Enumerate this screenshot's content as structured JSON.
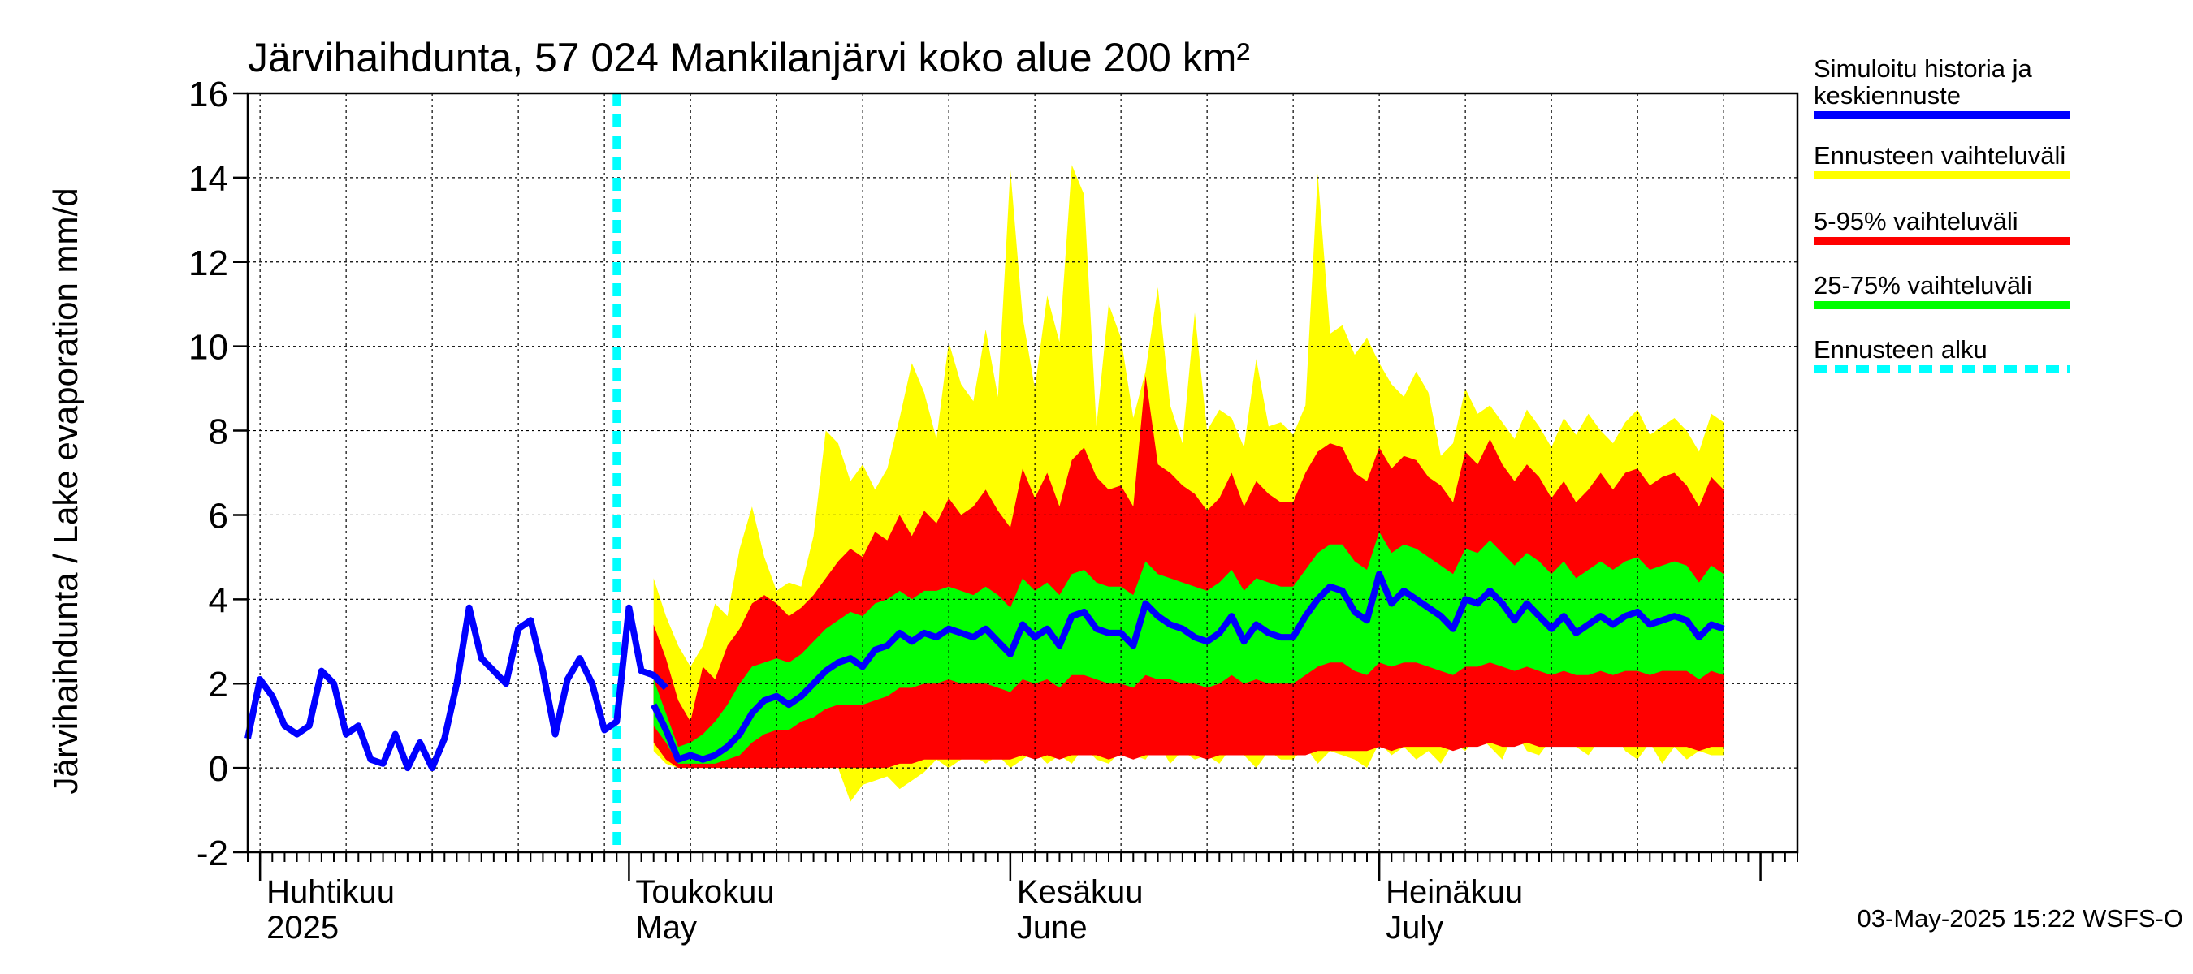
{
  "chart_data": {
    "type": "area",
    "title": "Järvihaihdunta, 57 024 Mankilanjärvi koko alue 200 km²",
    "ylabel": "Järvihaihdunta / Lake evaporation   mm/d",
    "ylim": [
      -2,
      16
    ],
    "yticks": [
      -2,
      0,
      2,
      4,
      6,
      8,
      10,
      12,
      14,
      16
    ],
    "xlim": [
      "2025-03-31",
      "2025-08-04"
    ],
    "grid": true,
    "legend_position": "right",
    "months": [
      {
        "date": "2025-04-01",
        "label_fi": "Huhtikuu",
        "label_en": "2025"
      },
      {
        "date": "2025-05-01",
        "label_fi": "Toukokuu",
        "label_en": "May"
      },
      {
        "date": "2025-06-01",
        "label_fi": "Kesäkuu",
        "label_en": "June"
      },
      {
        "date": "2025-07-01",
        "label_fi": "Heinäkuu",
        "label_en": "July"
      }
    ],
    "forecast_start": "2025-04-30",
    "history": {
      "start": "2025-03-31",
      "values": [
        0.7,
        2.1,
        1.7,
        1.0,
        0.8,
        1.0,
        2.3,
        2.0,
        0.8,
        1.0,
        0.2,
        0.1,
        0.8,
        0.0,
        0.6,
        0.0,
        0.7,
        2.0,
        3.8,
        2.6,
        2.3,
        2.0,
        3.3,
        3.5,
        2.3,
        0.8,
        2.1,
        2.6,
        2.0,
        0.9,
        1.1,
        3.8,
        2.3,
        2.2,
        1.9
      ]
    },
    "forecast": {
      "start": "2025-05-03",
      "median": [
        1.5,
        0.9,
        0.2,
        0.3,
        0.2,
        0.3,
        0.5,
        0.8,
        1.3,
        1.6,
        1.7,
        1.5,
        1.7,
        2.0,
        2.3,
        2.5,
        2.6,
        2.4,
        2.8,
        2.9,
        3.2,
        3.0,
        3.2,
        3.1,
        3.3,
        3.2,
        3.1,
        3.3,
        3.0,
        2.7,
        3.4,
        3.1,
        3.3,
        2.9,
        3.6,
        3.7,
        3.3,
        3.2,
        3.2,
        2.9,
        3.9,
        3.6,
        3.4,
        3.3,
        3.1,
        3.0,
        3.2,
        3.6,
        3.0,
        3.4,
        3.2,
        3.1,
        3.1,
        3.6,
        4.0,
        4.3,
        4.2,
        3.7,
        3.5,
        4.6,
        3.9,
        4.2,
        4.0,
        3.8,
        3.6,
        3.3,
        4.0,
        3.9,
        4.2,
        3.9,
        3.5,
        3.9,
        3.6,
        3.3,
        3.6,
        3.2,
        3.4,
        3.6,
        3.4,
        3.6,
        3.7,
        3.4,
        3.5,
        3.6,
        3.5,
        3.1,
        3.4,
        3.3
      ],
      "p25": [
        1.0,
        0.6,
        0.1,
        0.1,
        0.1,
        0.1,
        0.2,
        0.3,
        0.6,
        0.8,
        0.9,
        0.9,
        1.1,
        1.2,
        1.4,
        1.5,
        1.5,
        1.5,
        1.6,
        1.7,
        1.9,
        1.9,
        2.0,
        2.0,
        2.1,
        2.0,
        2.0,
        2.0,
        1.9,
        1.8,
        2.1,
        2.0,
        2.1,
        1.9,
        2.2,
        2.2,
        2.1,
        2.0,
        2.0,
        1.9,
        2.2,
        2.1,
        2.1,
        2.0,
        2.0,
        1.9,
        2.0,
        2.2,
        2.0,
        2.1,
        2.0,
        2.0,
        2.0,
        2.2,
        2.4,
        2.5,
        2.5,
        2.3,
        2.2,
        2.5,
        2.4,
        2.5,
        2.5,
        2.4,
        2.3,
        2.2,
        2.4,
        2.4,
        2.5,
        2.4,
        2.3,
        2.4,
        2.3,
        2.2,
        2.3,
        2.2,
        2.2,
        2.3,
        2.2,
        2.3,
        2.3,
        2.2,
        2.3,
        2.3,
        2.3,
        2.1,
        2.3,
        2.2
      ],
      "p75": [
        2.1,
        1.3,
        0.5,
        0.6,
        0.8,
        1.1,
        1.5,
        2.0,
        2.4,
        2.5,
        2.6,
        2.5,
        2.7,
        3.0,
        3.3,
        3.5,
        3.7,
        3.6,
        3.9,
        4.0,
        4.2,
        4.0,
        4.2,
        4.2,
        4.3,
        4.2,
        4.1,
        4.3,
        4.1,
        3.8,
        4.5,
        4.2,
        4.4,
        4.1,
        4.6,
        4.7,
        4.4,
        4.3,
        4.3,
        4.1,
        4.9,
        4.6,
        4.5,
        4.4,
        4.3,
        4.2,
        4.4,
        4.7,
        4.2,
        4.5,
        4.4,
        4.3,
        4.3,
        4.7,
        5.1,
        5.3,
        5.3,
        4.9,
        4.7,
        5.6,
        5.1,
        5.3,
        5.2,
        5.0,
        4.8,
        4.6,
        5.2,
        5.1,
        5.4,
        5.1,
        4.8,
        5.1,
        4.9,
        4.6,
        4.9,
        4.5,
        4.7,
        4.9,
        4.7,
        4.9,
        5.0,
        4.7,
        4.8,
        4.9,
        4.8,
        4.4,
        4.8,
        4.6
      ],
      "p5": [
        0.6,
        0.2,
        0.0,
        0.0,
        0.0,
        0.0,
        0.0,
        0.0,
        0.0,
        0.0,
        0.0,
        0.0,
        0.0,
        0.0,
        0.0,
        0.0,
        0.0,
        0.0,
        0.0,
        0.0,
        0.1,
        0.1,
        0.2,
        0.2,
        0.2,
        0.2,
        0.2,
        0.2,
        0.2,
        0.2,
        0.3,
        0.2,
        0.3,
        0.2,
        0.3,
        0.3,
        0.3,
        0.2,
        0.3,
        0.2,
        0.3,
        0.3,
        0.3,
        0.3,
        0.3,
        0.2,
        0.3,
        0.3,
        0.3,
        0.3,
        0.3,
        0.3,
        0.3,
        0.3,
        0.4,
        0.4,
        0.4,
        0.4,
        0.4,
        0.5,
        0.4,
        0.5,
        0.5,
        0.5,
        0.5,
        0.4,
        0.5,
        0.5,
        0.6,
        0.5,
        0.5,
        0.6,
        0.5,
        0.5,
        0.5,
        0.5,
        0.5,
        0.5,
        0.5,
        0.5,
        0.5,
        0.5,
        0.5,
        0.5,
        0.5,
        0.4,
        0.5,
        0.5
      ],
      "p95": [
        3.4,
        2.6,
        1.6,
        1.1,
        2.4,
        2.1,
        2.9,
        3.3,
        3.9,
        4.1,
        3.9,
        3.6,
        3.8,
        4.1,
        4.5,
        4.9,
        5.2,
        5.0,
        5.6,
        5.4,
        6.0,
        5.5,
        6.1,
        5.8,
        6.4,
        6.0,
        6.2,
        6.6,
        6.1,
        5.7,
        7.1,
        6.4,
        7.0,
        6.2,
        7.3,
        7.6,
        6.9,
        6.6,
        6.7,
        6.2,
        9.3,
        7.2,
        7.0,
        6.7,
        6.5,
        6.1,
        6.4,
        7.0,
        6.2,
        6.8,
        6.5,
        6.3,
        6.3,
        7.0,
        7.5,
        7.7,
        7.6,
        7.0,
        6.8,
        7.6,
        7.1,
        7.4,
        7.3,
        6.9,
        6.7,
        6.3,
        7.5,
        7.2,
        7.8,
        7.2,
        6.8,
        7.2,
        6.9,
        6.4,
        6.8,
        6.3,
        6.6,
        7.0,
        6.6,
        7.0,
        7.1,
        6.7,
        6.9,
        7.0,
        6.7,
        6.2,
        6.9,
        6.6
      ],
      "min": [
        0.4,
        0.1,
        0.0,
        0.0,
        0.0,
        0.0,
        0.0,
        0.0,
        0.0,
        0.0,
        0.0,
        0.0,
        0.0,
        0.0,
        0.0,
        0.0,
        -0.8,
        -0.4,
        -0.3,
        -0.2,
        -0.5,
        -0.3,
        -0.1,
        0.2,
        0.0,
        0.2,
        0.3,
        0.1,
        0.3,
        0.0,
        0.2,
        0.4,
        0.1,
        0.3,
        0.1,
        0.5,
        0.2,
        0.1,
        0.4,
        0.3,
        0.2,
        0.6,
        0.1,
        0.4,
        0.2,
        0.3,
        0.1,
        0.5,
        0.3,
        0.0,
        0.4,
        0.2,
        0.2,
        0.5,
        0.1,
        0.4,
        0.3,
        0.2,
        0.0,
        0.6,
        0.3,
        0.5,
        0.2,
        0.4,
        0.1,
        0.6,
        0.4,
        0.8,
        0.5,
        0.2,
        0.9,
        0.4,
        0.3,
        0.7,
        0.8,
        0.5,
        0.3,
        0.7,
        0.9,
        0.4,
        0.2,
        0.6,
        0.1,
        0.5,
        0.2,
        0.4,
        0.3,
        0.3
      ],
      "max": [
        4.5,
        3.6,
        2.9,
        2.4,
        2.9,
        3.9,
        3.6,
        5.2,
        6.2,
        5.0,
        4.2,
        4.4,
        4.3,
        5.5,
        8.0,
        7.7,
        6.8,
        7.2,
        6.6,
        7.1,
        8.3,
        9.6,
        8.9,
        7.8,
        10.1,
        9.1,
        8.7,
        10.4,
        8.8,
        14.2,
        10.7,
        9.0,
        11.2,
        10.1,
        14.3,
        13.6,
        8.1,
        11.0,
        10.2,
        8.3,
        9.4,
        11.4,
        8.6,
        7.7,
        10.8,
        8.0,
        8.5,
        8.3,
        7.6,
        9.7,
        8.1,
        8.2,
        7.9,
        8.6,
        14.1,
        10.3,
        10.5,
        9.8,
        10.2,
        9.6,
        9.1,
        8.8,
        9.4,
        8.9,
        7.4,
        7.7,
        9.0,
        8.4,
        8.6,
        8.2,
        7.8,
        8.5,
        8.1,
        7.6,
        8.3,
        7.9,
        8.4,
        8.0,
        7.7,
        8.2,
        8.5,
        7.9,
        8.1,
        8.3,
        8.0,
        7.5,
        8.4,
        8.2
      ]
    },
    "legend": [
      {
        "label_1": "Simuloitu historia ja",
        "label_2": "keskiennuste",
        "color": "#0000ff",
        "style": "solid"
      },
      {
        "label_1": "Ennusteen vaihteluväli",
        "label_2": "",
        "color": "#ffff00",
        "style": "solid"
      },
      {
        "label_1": "5-95% vaihteluväli",
        "label_2": "",
        "color": "#ff0000",
        "style": "solid"
      },
      {
        "label_1": "25-75% vaihteluväli",
        "label_2": "",
        "color": "#00ff00",
        "style": "solid"
      },
      {
        "label_1": "Ennusteen alku",
        "label_2": "",
        "color": "#00ffff",
        "style": "dashed"
      }
    ],
    "timestamp": "03-May-2025 15:22 WSFS-O"
  }
}
